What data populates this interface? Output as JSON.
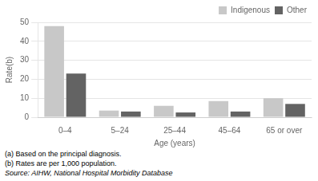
{
  "chart_data": {
    "type": "bar",
    "categories": [
      "0–4",
      "5–24",
      "25–44",
      "45–64",
      "65 or over"
    ],
    "series": [
      {
        "name": "Indigenous",
        "color": "#c8c8c8",
        "values": [
          48,
          3.5,
          6,
          8.5,
          10
        ]
      },
      {
        "name": "Other",
        "color": "#636363",
        "values": [
          23,
          3,
          2.5,
          3,
          7
        ]
      }
    ],
    "xlabel": "Age (years)",
    "ylabel": "Rate(b)",
    "ylim": [
      0,
      50
    ],
    "yticks": [
      0,
      10,
      20,
      30,
      40,
      50
    ],
    "grid": true,
    "legend": "upper right",
    "annotations": [
      "(a) Based on the principal diagnosis.",
      "(b) Rates are per 1,000 population.",
      "Source: AIHW, National Hospital Morbidity Database"
    ]
  }
}
